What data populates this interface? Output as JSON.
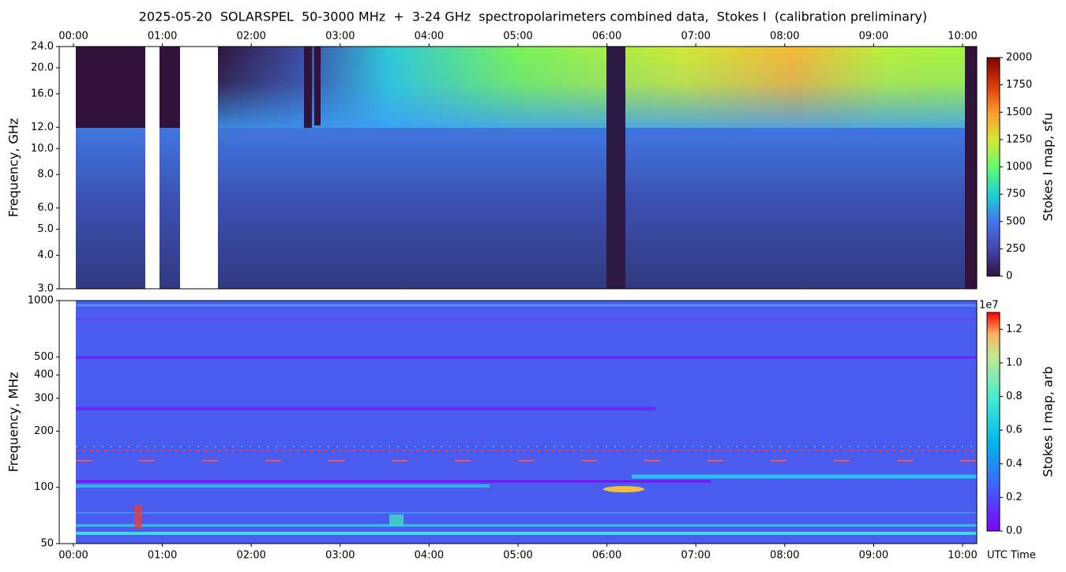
{
  "chart_data": [
    {
      "type": "heatmap",
      "title": "2025-05-20  SOLARSPEL  50-3000 MHz  +  3-24 GHz  spectropolarimeters combined data,  Stokes I  (calibration preliminary)",
      "ylabel": "Frequency, GHz",
      "xlim": [
        -0.16,
        10.16
      ],
      "xticks": [
        {
          "value": 0,
          "label": "00:00"
        },
        {
          "value": 1,
          "label": "01:00"
        },
        {
          "value": 2,
          "label": "02:00"
        },
        {
          "value": 3,
          "label": "03:00"
        },
        {
          "value": 4,
          "label": "04:00"
        },
        {
          "value": 5,
          "label": "05:00"
        },
        {
          "value": 6,
          "label": "06:00"
        },
        {
          "value": 7,
          "label": "07:00"
        },
        {
          "value": 8,
          "label": "08:00"
        },
        {
          "value": 9,
          "label": "09:00"
        },
        {
          "value": 10,
          "label": "10:00"
        }
      ],
      "xaxis_position": "top",
      "ylim": [
        3,
        24
      ],
      "ylog": true,
      "yticks": [
        {
          "value": 3,
          "label": "3.0"
        },
        {
          "value": 4,
          "label": "4.0"
        },
        {
          "value": 5,
          "label": "5.0"
        },
        {
          "value": 6,
          "label": "6.0"
        },
        {
          "value": 8,
          "label": "8.0"
        },
        {
          "value": 10,
          "label": "10.0"
        },
        {
          "value": 12,
          "label": "12.0"
        },
        {
          "value": 16,
          "label": "16.0"
        },
        {
          "value": 20,
          "label": "20.0"
        },
        {
          "value": 24,
          "label": "24.0"
        }
      ],
      "colorbar": {
        "label": "Stokes I map, sfu",
        "lim": [
          0,
          2000
        ],
        "ticks": [
          0,
          250,
          500,
          750,
          1000,
          1250,
          1500,
          1750,
          2000
        ]
      }
    },
    {
      "type": "heatmap",
      "ylabel": "Frequency, MHz",
      "xlabel": "UTC Time",
      "xlim": [
        -0.16,
        10.16
      ],
      "xticks": [
        {
          "value": 0,
          "label": "00:00"
        },
        {
          "value": 1,
          "label": "01:00"
        },
        {
          "value": 2,
          "label": "02:00"
        },
        {
          "value": 3,
          "label": "03:00"
        },
        {
          "value": 4,
          "label": "04:00"
        },
        {
          "value": 5,
          "label": "05:00"
        },
        {
          "value": 6,
          "label": "06:00"
        },
        {
          "value": 7,
          "label": "07:00"
        },
        {
          "value": 8,
          "label": "08:00"
        },
        {
          "value": 9,
          "label": "09:00"
        },
        {
          "value": 10,
          "label": "10:00"
        }
      ],
      "xaxis_position": "bottom",
      "ylim": [
        50,
        1000
      ],
      "ylog": true,
      "yticks": [
        50,
        100,
        200,
        300,
        400,
        500,
        1000
      ],
      "colorbar": {
        "label": "Stokes I map, arb",
        "lim": [
          0,
          1.3
        ],
        "offset_label": "1e7",
        "ticks": [
          {
            "value": 0,
            "label": "0.0"
          },
          {
            "value": 0.2,
            "label": "0.2"
          },
          {
            "value": 0.4,
            "label": "0.4"
          },
          {
            "value": 0.6,
            "label": "0.6"
          },
          {
            "value": 0.8,
            "label": "0.8"
          },
          {
            "value": 1.0,
            "label": "1.0"
          },
          {
            "value": 1.2,
            "label": "1.2"
          }
        ]
      }
    }
  ]
}
